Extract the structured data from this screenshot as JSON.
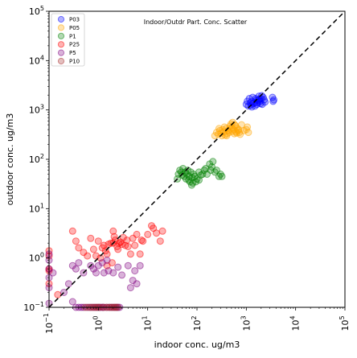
{
  "chart_data": {
    "type": "scatter",
    "title": "Indoor/Outdr Part. Conc. Scatter",
    "xlabel": "indoor conc. ug/m3",
    "ylabel": "outdoor conc. ug/m3",
    "xscale": "log",
    "yscale": "log",
    "xlim": [
      0.1,
      100000
    ],
    "ylim": [
      0.1,
      100000
    ],
    "grid": false,
    "legend_position": "top-left",
    "x_ticks": [
      {
        "value": 0.1,
        "base": "10",
        "exp": "−1"
      },
      {
        "value": 1,
        "base": "10",
        "exp": "0"
      },
      {
        "value": 10,
        "base": "10",
        "exp": "1"
      },
      {
        "value": 100,
        "base": "10",
        "exp": "2"
      },
      {
        "value": 1000,
        "base": "10",
        "exp": "3"
      },
      {
        "value": 10000,
        "base": "10",
        "exp": "4"
      },
      {
        "value": 100000,
        "base": "10",
        "exp": "5"
      }
    ],
    "y_ticks": [
      {
        "value": 0.1,
        "base": "10",
        "exp": "−1"
      },
      {
        "value": 1,
        "base": "10",
        "exp": "0"
      },
      {
        "value": 10,
        "base": "10",
        "exp": "1"
      },
      {
        "value": 100,
        "base": "10",
        "exp": "2"
      },
      {
        "value": 1000,
        "base": "10",
        "exp": "3"
      },
      {
        "value": 10000,
        "base": "10",
        "exp": "4"
      },
      {
        "value": 100000,
        "base": "10",
        "exp": "5"
      }
    ],
    "reference_line": {
      "style": "dashed",
      "color": "#000000",
      "x": [
        0.1,
        100000
      ],
      "y": [
        0.1,
        100000
      ]
    },
    "series": [
      {
        "name": "P03",
        "color": "#0000ff",
        "points": [
          [
            1000,
            1300
          ],
          [
            1100,
            1200
          ],
          [
            1200,
            1400
          ],
          [
            1300,
            1500
          ],
          [
            1400,
            1350
          ],
          [
            1500,
            1200
          ],
          [
            1600,
            1600
          ],
          [
            1700,
            1400
          ],
          [
            1800,
            1900
          ],
          [
            1900,
            1500
          ],
          [
            2000,
            1700
          ],
          [
            2100,
            1300
          ],
          [
            2200,
            1800
          ],
          [
            2300,
            1600
          ],
          [
            1050,
            1500
          ],
          [
            1150,
            1700
          ],
          [
            1250,
            1250
          ],
          [
            1350,
            1800
          ],
          [
            1450,
            1400
          ],
          [
            1550,
            1700
          ],
          [
            3400,
            1800
          ],
          [
            3500,
            1500
          ],
          [
            3600,
            1600
          ],
          [
            1650,
            1300
          ],
          [
            1750,
            1550
          ],
          [
            1850,
            1650
          ],
          [
            1950,
            1350
          ],
          [
            2050,
            1950
          ],
          [
            2400,
            1450
          ],
          [
            1300,
            1150
          ]
        ]
      },
      {
        "name": "P05",
        "color": "#ffa500",
        "points": [
          [
            230,
            300
          ],
          [
            250,
            350
          ],
          [
            270,
            320
          ],
          [
            290,
            380
          ],
          [
            310,
            340
          ],
          [
            330,
            400
          ],
          [
            350,
            360
          ],
          [
            370,
            310
          ],
          [
            390,
            420
          ],
          [
            410,
            330
          ],
          [
            430,
            380
          ],
          [
            450,
            350
          ],
          [
            470,
            470
          ],
          [
            490,
            520
          ],
          [
            510,
            440
          ],
          [
            530,
            560
          ],
          [
            550,
            400
          ],
          [
            570,
            330
          ],
          [
            600,
            480
          ],
          [
            620,
            360
          ],
          [
            650,
            430
          ],
          [
            680,
            380
          ],
          [
            700,
            400
          ],
          [
            720,
            350
          ],
          [
            750,
            320
          ],
          [
            800,
            500
          ],
          [
            1000,
            400
          ],
          [
            1050,
            450
          ],
          [
            1100,
            350
          ],
          [
            320,
            300
          ],
          [
            280,
            420
          ],
          [
            360,
            450
          ],
          [
            400,
            300
          ],
          [
            460,
            410
          ],
          [
            520,
            370
          ],
          [
            580,
            500
          ],
          [
            640,
            340
          ],
          [
            900,
            380
          ]
        ]
      },
      {
        "name": "P1",
        "color": "#008000",
        "points": [
          [
            40,
            40
          ],
          [
            42,
            50
          ],
          [
            45,
            60
          ],
          [
            48,
            55
          ],
          [
            50,
            48
          ],
          [
            52,
            65
          ],
          [
            55,
            45
          ],
          [
            58,
            55
          ],
          [
            60,
            40
          ],
          [
            62,
            50
          ],
          [
            65,
            60
          ],
          [
            68,
            38
          ],
          [
            70,
            45
          ],
          [
            72,
            35
          ],
          [
            75,
            55
          ],
          [
            78,
            30
          ],
          [
            80,
            42
          ],
          [
            82,
            33
          ],
          [
            85,
            50
          ],
          [
            90,
            45
          ],
          [
            100,
            40
          ],
          [
            110,
            38
          ],
          [
            120,
            48
          ],
          [
            140,
            60
          ],
          [
            150,
            65
          ],
          [
            160,
            50
          ],
          [
            180,
            80
          ],
          [
            190,
            60
          ],
          [
            200,
            70
          ],
          [
            210,
            90
          ],
          [
            230,
            55
          ],
          [
            250,
            60
          ],
          [
            280,
            45
          ],
          [
            300,
            50
          ],
          [
            320,
            45
          ],
          [
            110,
            55
          ],
          [
            130,
            50
          ],
          [
            95,
            35
          ]
        ]
      },
      {
        "name": "P25",
        "color": "#ff0000",
        "points": [
          [
            0.3,
            3.5
          ],
          [
            0.35,
            2.2
          ],
          [
            0.4,
            1.6
          ],
          [
            0.5,
            1.3
          ],
          [
            0.6,
            1.1
          ],
          [
            0.7,
            2.5
          ],
          [
            0.8,
            1.5
          ],
          [
            0.9,
            1.1
          ],
          [
            1.0,
            2.2
          ],
          [
            1.1,
            1.0
          ],
          [
            1.2,
            1.6
          ],
          [
            1.3,
            1.8
          ],
          [
            1.4,
            1.4
          ],
          [
            1.5,
            1.2
          ],
          [
            1.6,
            1.9
          ],
          [
            1.8,
            2.0
          ],
          [
            2.0,
            2.0
          ],
          [
            2.2,
            2.3
          ],
          [
            2.4,
            1.7
          ],
          [
            2.6,
            2.0
          ],
          [
            2.8,
            2.1
          ],
          [
            3.0,
            1.9
          ],
          [
            3.5,
            1.8
          ],
          [
            4.0,
            1.7
          ],
          [
            4.5,
            1.2
          ],
          [
            5.0,
            2.5
          ],
          [
            5.5,
            1.8
          ],
          [
            6.0,
            3.0
          ],
          [
            7.0,
            1.2
          ],
          [
            8.0,
            2.2
          ],
          [
            10,
            3.0
          ],
          [
            12,
            4.5
          ],
          [
            13,
            4.0
          ],
          [
            15,
            3.2
          ],
          [
            18,
            2.2
          ],
          [
            20,
            3.5
          ],
          [
            2.5,
            1.5
          ],
          [
            1.9,
            0.8
          ],
          [
            1.5,
            0.7
          ],
          [
            2.0,
            3.5
          ],
          [
            0.1,
            1.4
          ],
          [
            0.1,
            0.6
          ],
          [
            0.1,
            0.3
          ],
          [
            0.1,
            1.1
          ],
          [
            0.1,
            0.55
          ],
          [
            0.15,
            0.18
          ],
          [
            2.1,
            2.7
          ],
          [
            3.2,
            2.6
          ],
          [
            3.8,
            2.3
          ],
          [
            7.5,
            2.3
          ]
        ]
      },
      {
        "name": "P5",
        "color": "#800080",
        "points": [
          [
            0.1,
            1.2
          ],
          [
            0.1,
            0.9
          ],
          [
            0.1,
            0.6
          ],
          [
            0.1,
            0.25
          ],
          [
            0.1,
            0.12
          ],
          [
            0.1,
            0.4
          ],
          [
            0.3,
            0.7
          ],
          [
            0.35,
            0.6
          ],
          [
            0.4,
            0.8
          ],
          [
            0.5,
            0.5
          ],
          [
            0.7,
            0.7
          ],
          [
            0.8,
            0.6
          ],
          [
            0.9,
            0.5
          ],
          [
            1.0,
            0.7
          ],
          [
            1.2,
            0.8
          ],
          [
            1.3,
            0.5
          ],
          [
            1.5,
            0.9
          ],
          [
            1.6,
            0.55
          ],
          [
            2.0,
            0.5
          ],
          [
            2.5,
            0.65
          ],
          [
            3.0,
            0.45
          ],
          [
            4.0,
            0.7
          ],
          [
            4.5,
            0.25
          ],
          [
            5.0,
            0.35
          ],
          [
            5.5,
            0.55
          ],
          [
            6.0,
            0.3
          ],
          [
            7.0,
            0.7
          ],
          [
            0.2,
            0.2
          ],
          [
            0.3,
            0.13
          ],
          [
            0.25,
            0.3
          ],
          [
            0.35,
            0.1
          ],
          [
            0.4,
            0.1
          ],
          [
            0.45,
            0.1
          ],
          [
            0.5,
            0.1
          ],
          [
            0.6,
            0.1
          ],
          [
            0.7,
            0.1
          ],
          [
            0.8,
            0.1
          ],
          [
            0.9,
            0.1
          ],
          [
            1.0,
            0.1
          ],
          [
            1.1,
            0.1
          ],
          [
            1.2,
            0.1
          ],
          [
            1.3,
            0.1
          ],
          [
            1.5,
            0.1
          ],
          [
            1.7,
            0.1
          ],
          [
            1.9,
            0.1
          ],
          [
            2.1,
            0.1
          ],
          [
            2.3,
            0.1
          ],
          [
            2.5,
            0.1
          ],
          [
            2.7,
            0.1
          ],
          [
            0.12,
            0.5
          ]
        ]
      },
      {
        "name": "P10",
        "color": "#a52a2a",
        "points": [
          [
            0.55,
            0.1
          ],
          [
            0.65,
            0.1
          ],
          [
            0.75,
            0.1
          ],
          [
            0.85,
            0.1
          ],
          [
            0.95,
            0.1
          ],
          [
            1.05,
            0.1
          ],
          [
            1.25,
            0.1
          ],
          [
            1.45,
            0.1
          ],
          [
            1.65,
            0.1
          ],
          [
            1.85,
            0.1
          ],
          [
            2.05,
            0.1
          ],
          [
            2.25,
            0.1
          ],
          [
            2.45,
            0.1
          ]
        ]
      }
    ]
  }
}
